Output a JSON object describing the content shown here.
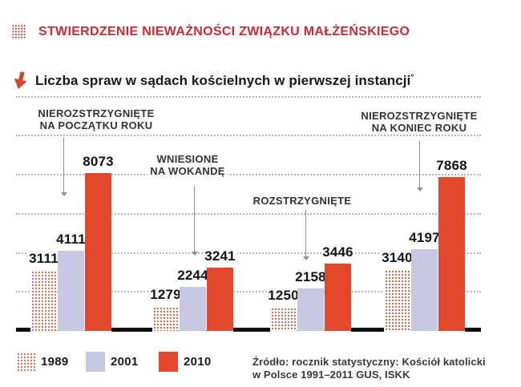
{
  "header": {
    "title": "STWIERDZENIE NIEWAŻNOŚCI ZWIĄZKU MAŁŻEŃSKIEGO",
    "subtitle": "Liczba spraw w sądach kościelnych w pierwszej instancji",
    "subtitle_superscript": "°"
  },
  "icons": {
    "header_icon": "dotted-square-icon",
    "subtitle_icon": "down-arrow-icon"
  },
  "chart_data": {
    "type": "bar",
    "title": "Liczba spraw w sądach kościelnych w pierwszej instancji",
    "series_years": [
      "1989",
      "2001",
      "2010"
    ],
    "categories": [
      "NIEROZSTRZYGNIĘTE\nNA POCZĄTKU ROKU",
      "WNIESIONE\nNA WOKANDĘ",
      "ROZSTRZYGNIĘTE",
      "NIEROZSTRZYGNIĘTE\nNA KONIEC ROKU"
    ],
    "series": [
      {
        "name": "1989",
        "values": [
          3111,
          1279,
          1250,
          3140
        ]
      },
      {
        "name": "2001",
        "values": [
          4111,
          2244,
          2158,
          4197
        ]
      },
      {
        "name": "2010",
        "values": [
          8073,
          3241,
          3446,
          7868
        ]
      }
    ],
    "groups": [
      {
        "label": "NIEROZSTRZYGNIĘTE\nNA POCZĄTKU ROKU",
        "values": [
          3111,
          4111,
          8073
        ]
      },
      {
        "label": "WNIESIONE\nNA WOKANDĘ",
        "values": [
          1279,
          2244,
          3241
        ]
      },
      {
        "label": "ROZSTRZYGNIĘTE",
        "values": [
          1250,
          2158,
          3446
        ]
      },
      {
        "label": "NIEROZSTRZYGNIĘTE\nNA KONIEC ROKU",
        "values": [
          3140,
          4197,
          7868
        ]
      }
    ],
    "ylim": [
      0,
      12000
    ],
    "gridline_values": [
      2000,
      4000,
      6000,
      8000,
      10000,
      12000
    ],
    "gridlines_labeled": false,
    "legend_position": "bottom-left",
    "colors": {
      "1989": "red-dot-pattern",
      "2001": "#c9c8e2",
      "2010": "#e2492c",
      "title_red": "#cb2a34"
    }
  },
  "legend": {
    "items": [
      {
        "label": "1989",
        "swatch": "dotted"
      },
      {
        "label": "2001",
        "swatch": "lavender"
      },
      {
        "label": "2010",
        "swatch": "red"
      }
    ]
  },
  "source": {
    "line1": "Źródło: rocznik statystyczny: Kościół katolicki",
    "line2": "w Polsce 1991–2011 GUS, ISKK"
  }
}
